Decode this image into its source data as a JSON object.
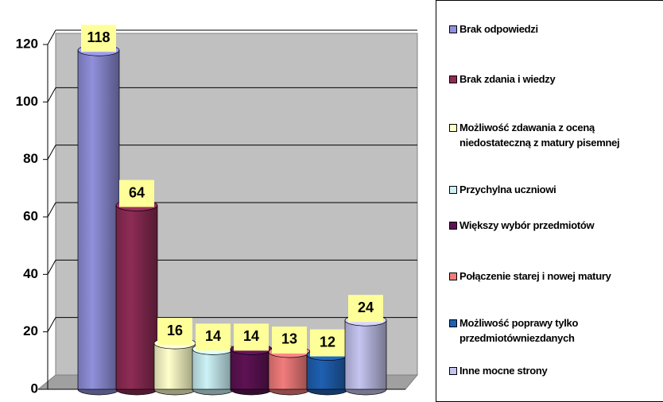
{
  "chart_data": {
    "type": "bar",
    "series": [
      {
        "name": "Brak odpowiedzi",
        "color": "#9090dc",
        "values": [
          118
        ]
      },
      {
        "name": "Brak zdania i wiedzy",
        "color": "#8e2c55",
        "values": [
          64
        ]
      },
      {
        "name": "Możliwość zdawania z oceną niedostateczną z matury pisemnej",
        "color": "#ffffcc",
        "values": [
          16
        ]
      },
      {
        "name": "Przychylna uczniowi",
        "color": "#ccf2f6",
        "values": [
          14
        ]
      },
      {
        "name": "Większy wybór przedmiotów",
        "color": "#5e1254",
        "values": [
          14
        ]
      },
      {
        "name": "Połączenie starej i nowej matury",
        "color": "#f27c7c",
        "values": [
          13
        ]
      },
      {
        "name": "Możliwość poprawy tylko przedmiotówniezdanych",
        "color": "#1f60b2",
        "values": [
          12
        ]
      },
      {
        "name": "Inne mocne strony",
        "color": "#c4c4f0",
        "values": [
          24
        ]
      }
    ],
    "ylim": [
      0,
      120
    ],
    "yticks": [
      0,
      20,
      40,
      60,
      80,
      100,
      120
    ],
    "grid": true,
    "legend": "right"
  }
}
